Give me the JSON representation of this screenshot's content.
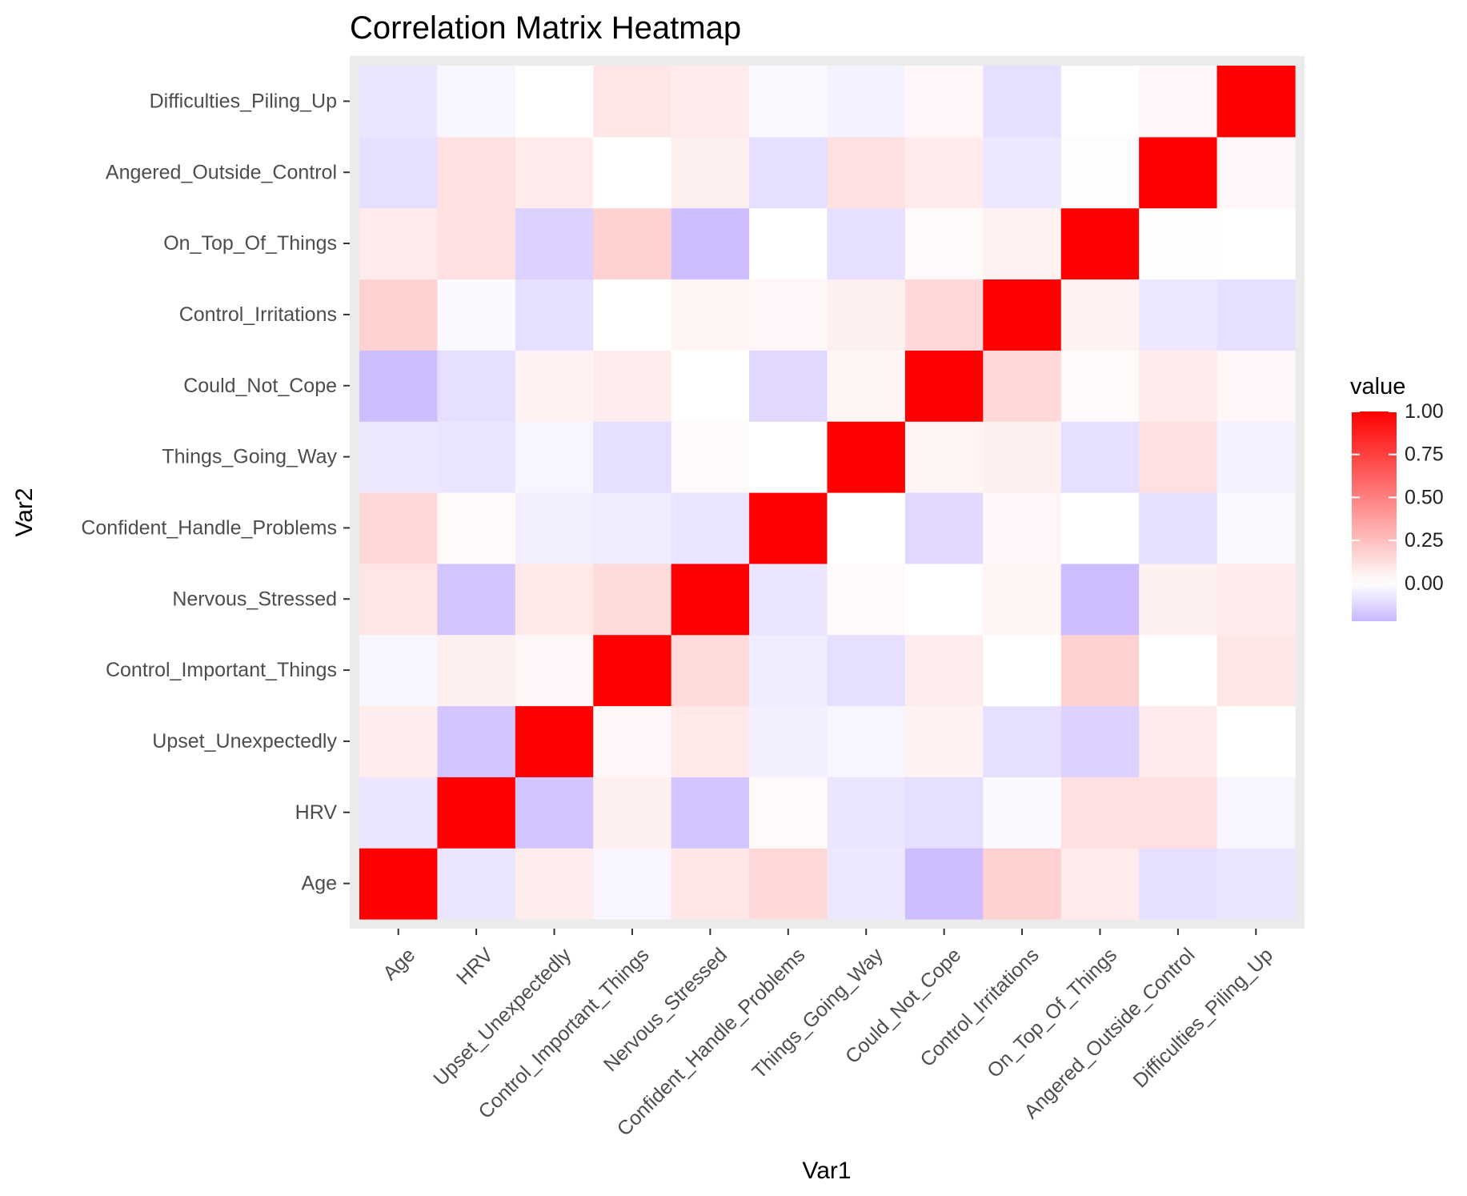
{
  "chart_data": {
    "type": "heatmap",
    "title": "Correlation Matrix Heatmap",
    "xlabel": "Var1",
    "ylabel": "Var2",
    "variables": [
      "Age",
      "HRV",
      "Upset_Unexpectedly",
      "Control_Important_Things",
      "Nervous_Stressed",
      "Confident_Handle_Problems",
      "Things_Going_Way",
      "Could_Not_Cope",
      "Control_Irritations",
      "On_Top_Of_Things",
      "Angered_Outside_Control",
      "Difficulties_Piling_Up"
    ],
    "values": [
      [
        1.0,
        -0.08,
        0.07,
        -0.03,
        0.1,
        0.15,
        -0.07,
        -0.2,
        0.18,
        0.08,
        -0.1,
        -0.08
      ],
      [
        -0.08,
        1.0,
        -0.18,
        0.06,
        -0.18,
        0.02,
        -0.08,
        -0.1,
        -0.02,
        0.12,
        0.12,
        -0.03
      ],
      [
        0.07,
        -0.18,
        1.0,
        0.03,
        0.09,
        -0.05,
        -0.03,
        0.05,
        -0.1,
        -0.14,
        0.08,
        0.0
      ],
      [
        -0.03,
        0.06,
        0.03,
        1.0,
        0.14,
        -0.06,
        -0.1,
        0.07,
        0.0,
        0.18,
        0.0,
        0.1
      ],
      [
        0.1,
        -0.18,
        0.09,
        0.14,
        1.0,
        -0.08,
        0.02,
        0.0,
        0.04,
        -0.2,
        0.06,
        0.08
      ],
      [
        0.15,
        0.02,
        -0.05,
        -0.06,
        -0.08,
        1.0,
        0.0,
        -0.12,
        0.03,
        0.0,
        -0.1,
        -0.02
      ],
      [
        -0.07,
        -0.08,
        -0.03,
        -0.1,
        0.02,
        0.0,
        1.0,
        0.04,
        0.06,
        -0.1,
        0.12,
        -0.04
      ],
      [
        -0.2,
        -0.1,
        0.05,
        0.07,
        0.0,
        -0.12,
        0.04,
        1.0,
        0.15,
        0.02,
        0.08,
        0.03
      ],
      [
        0.18,
        -0.02,
        -0.1,
        0.0,
        0.04,
        0.03,
        0.06,
        0.15,
        1.0,
        0.05,
        -0.07,
        -0.1
      ],
      [
        0.08,
        0.12,
        -0.14,
        0.18,
        -0.2,
        0.0,
        -0.1,
        0.02,
        0.05,
        1.0,
        -0.01,
        0.0
      ],
      [
        -0.1,
        0.12,
        0.08,
        0.0,
        0.06,
        -0.1,
        0.12,
        0.08,
        -0.07,
        -0.01,
        1.0,
        0.03
      ],
      [
        -0.08,
        -0.03,
        0.0,
        0.1,
        0.08,
        -0.02,
        -0.04,
        0.03,
        -0.1,
        0.0,
        0.03,
        1.0
      ]
    ],
    "legend": {
      "title": "value",
      "ticks": [
        1.0,
        0.75,
        0.5,
        0.25,
        0.0
      ],
      "labels": [
        "1.00",
        "0.75",
        "0.50",
        "0.25",
        "0.00"
      ],
      "range": [
        -0.22,
        1.0
      ],
      "position": "right"
    },
    "colors": {
      "high": "#ff0000",
      "mid": "#ffffff",
      "low": "#c9b8ff",
      "panel_background": "#ebebeb"
    }
  }
}
